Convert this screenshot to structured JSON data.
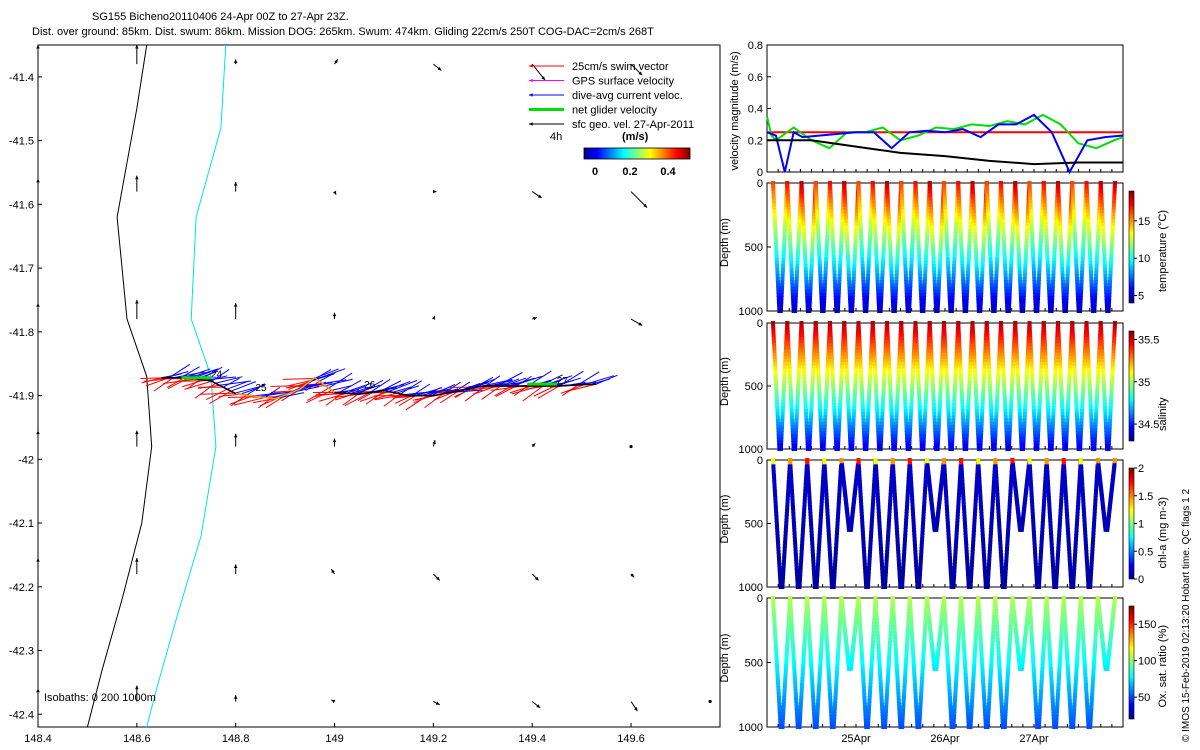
{
  "header": {
    "line1": "SG155 Bicheno20110406 24-Apr 00Z to 27-Apr 23Z.",
    "line2": "Dist. over ground: 85km. Dist. swum: 86km. Mission DOG: 265km. Swum: 474km. Gliding 22cm/s 250T COG-DAC=2cm/s 268T"
  },
  "footer_note": "© IMOS 15-Feb-2019 02:13:20 Hobart time. QC flags 1  2",
  "colors": {
    "swim": "#ff0000",
    "gps": "#ff00ff",
    "dac": "#0000ff",
    "net": "#00e000",
    "sfc": "#000000",
    "isobath0": "#000000",
    "isobath200": "#00e5e5",
    "colormap": [
      "#00008f",
      "#0000ff",
      "#0080ff",
      "#00ffff",
      "#80ff80",
      "#ffff00",
      "#ff8000",
      "#ff0000",
      "#800000"
    ]
  },
  "chart_data": [
    {
      "id": "map",
      "type": "scatter",
      "title": "",
      "xlim": [
        148.4,
        149.78
      ],
      "ylim": [
        -42.42,
        -41.35
      ],
      "xticks": [
        "148.4",
        "148.6",
        "148.8",
        "149",
        "149.2",
        "149.4",
        "149.6"
      ],
      "xtick_values": [
        148.4,
        148.6,
        148.8,
        149.0,
        149.2,
        149.4,
        149.6
      ],
      "yticks": [
        "-41.4",
        "-41.5",
        "-41.6",
        "-41.7",
        "-41.8",
        "-41.9",
        "-42",
        "-42.1",
        "-42.2",
        "-42.3",
        "-42.4"
      ],
      "ytick_values": [
        -41.4,
        -41.5,
        -41.6,
        -41.7,
        -41.8,
        -41.9,
        -42.0,
        -42.1,
        -42.2,
        -42.3,
        -42.4
      ],
      "legend": {
        "placement": "top-right",
        "items": [
          "25cm/s swim vector",
          "GPS surface velocity",
          "dive-avg current veloc.",
          "net glider velocity",
          "sfc geo. vel. 27-Apr-2011"
        ],
        "scale_label": "4h",
        "unit_label": "(m/s)",
        "colorbar_ticks": [
          "0",
          "0.2",
          "0.4"
        ]
      },
      "isobath_label": "Isobaths: 0   200  1000m",
      "day_labels": [
        "24",
        "25",
        "26",
        "27"
      ],
      "day_positions": [
        [
          148.75,
          -41.872
        ],
        [
          148.84,
          -41.893
        ],
        [
          149.06,
          -41.888
        ],
        [
          149.45,
          -41.882
        ]
      ],
      "isobath_0m": [
        [
          148.62,
          -41.35
        ],
        [
          148.6,
          -41.45
        ],
        [
          148.56,
          -41.62
        ],
        [
          148.58,
          -41.78
        ],
        [
          148.62,
          -41.87
        ],
        [
          148.63,
          -41.98
        ],
        [
          148.61,
          -42.1
        ],
        [
          148.57,
          -42.22
        ],
        [
          148.53,
          -42.33
        ],
        [
          148.5,
          -42.42
        ]
      ],
      "isobath_200m": [
        [
          148.78,
          -41.35
        ],
        [
          148.77,
          -41.48
        ],
        [
          148.72,
          -41.62
        ],
        [
          148.71,
          -41.78
        ],
        [
          148.75,
          -41.87
        ],
        [
          148.76,
          -41.98
        ],
        [
          148.73,
          -42.12
        ],
        [
          148.68,
          -42.25
        ],
        [
          148.64,
          -42.36
        ],
        [
          148.62,
          -42.42
        ]
      ],
      "track": [
        [
          148.65,
          -41.872
        ],
        [
          148.7,
          -41.872
        ],
        [
          148.75,
          -41.877
        ],
        [
          148.8,
          -41.897
        ],
        [
          148.88,
          -41.905
        ],
        [
          148.93,
          -41.89
        ],
        [
          148.96,
          -41.872
        ],
        [
          149.0,
          -41.895
        ],
        [
          149.05,
          -41.898
        ],
        [
          149.1,
          -41.892
        ],
        [
          149.15,
          -41.9
        ],
        [
          149.2,
          -41.9
        ],
        [
          149.25,
          -41.893
        ],
        [
          149.3,
          -41.885
        ],
        [
          149.35,
          -41.885
        ],
        [
          149.4,
          -41.885
        ],
        [
          149.45,
          -41.885
        ],
        [
          149.53,
          -41.882
        ]
      ],
      "geo_velocity_arrows": [
        {
          "lon": 148.4,
          "lat": -41.38,
          "u": 0,
          "v": 0.12
        },
        {
          "lon": 148.6,
          "lat": -41.38,
          "u": 0,
          "v": 0.12
        },
        {
          "lon": 148.8,
          "lat": -41.38,
          "u": 0,
          "v": 0.03
        },
        {
          "lon": 149.0,
          "lat": -41.38,
          "u": 0.02,
          "v": 0.03
        },
        {
          "lon": 149.2,
          "lat": -41.38,
          "u": 0.05,
          "v": -0.04
        },
        {
          "lon": 149.4,
          "lat": -41.38,
          "u": 0.08,
          "v": -0.1
        },
        {
          "lon": 149.6,
          "lat": -41.38,
          "u": 0.07,
          "v": -0.07
        },
        {
          "lon": 148.4,
          "lat": -41.58,
          "u": 0,
          "v": 0.08
        },
        {
          "lon": 148.6,
          "lat": -41.58,
          "u": 0,
          "v": 0.1
        },
        {
          "lon": 148.8,
          "lat": -41.58,
          "u": 0,
          "v": 0.06
        },
        {
          "lon": 149.0,
          "lat": -41.58,
          "u": 0.01,
          "v": -0.02
        },
        {
          "lon": 149.2,
          "lat": -41.58,
          "u": 0.02,
          "v": 0
        },
        {
          "lon": 149.4,
          "lat": -41.58,
          "u": 0.06,
          "v": -0.04
        },
        {
          "lon": 149.6,
          "lat": -41.58,
          "u": 0.1,
          "v": -0.1
        },
        {
          "lon": 148.4,
          "lat": -41.78,
          "u": 0,
          "v": 0.1
        },
        {
          "lon": 148.6,
          "lat": -41.78,
          "u": 0,
          "v": 0.12
        },
        {
          "lon": 148.8,
          "lat": -41.78,
          "u": 0,
          "v": 0.1
        },
        {
          "lon": 149.0,
          "lat": -41.78,
          "u": 0,
          "v": 0.04
        },
        {
          "lon": 149.2,
          "lat": -41.78,
          "u": 0.01,
          "v": 0.02
        },
        {
          "lon": 149.4,
          "lat": -41.78,
          "u": 0.03,
          "v": 0.01
        },
        {
          "lon": 149.6,
          "lat": -41.78,
          "u": 0.07,
          "v": -0.04
        },
        {
          "lon": 148.4,
          "lat": -41.98,
          "u": 0,
          "v": 0.1
        },
        {
          "lon": 148.6,
          "lat": -41.98,
          "u": 0,
          "v": 0.1
        },
        {
          "lon": 148.8,
          "lat": -41.98,
          "u": 0,
          "v": 0.08
        },
        {
          "lon": 149.0,
          "lat": -41.98,
          "u": 0,
          "v": 0.05
        },
        {
          "lon": 149.2,
          "lat": -41.98,
          "u": 0.01,
          "v": 0.04
        },
        {
          "lon": 149.4,
          "lat": -41.98,
          "u": 0.02,
          "v": 0.02
        },
        {
          "lon": 149.6,
          "lat": -41.98,
          "u": 0.01,
          "v": 0
        },
        {
          "lon": 148.4,
          "lat": -42.18,
          "u": 0,
          "v": 0.1
        },
        {
          "lon": 148.6,
          "lat": -42.18,
          "u": 0,
          "v": 0.1
        },
        {
          "lon": 148.8,
          "lat": -42.18,
          "u": 0,
          "v": 0.06
        },
        {
          "lon": 149.0,
          "lat": -42.18,
          "u": -0.02,
          "v": 0.03
        },
        {
          "lon": 149.2,
          "lat": -42.18,
          "u": 0.04,
          "v": -0.04
        },
        {
          "lon": 149.4,
          "lat": -42.18,
          "u": 0.04,
          "v": -0.04
        },
        {
          "lon": 149.6,
          "lat": -42.18,
          "u": 0.02,
          "v": -0.02
        },
        {
          "lon": 148.4,
          "lat": -42.38,
          "u": 0,
          "v": 0.08
        },
        {
          "lon": 148.6,
          "lat": -42.38,
          "u": 0,
          "v": 0.1
        },
        {
          "lon": 148.8,
          "lat": -42.38,
          "u": 0,
          "v": 0.04
        },
        {
          "lon": 149.0,
          "lat": -42.38,
          "u": -0.02,
          "v": 0.01
        },
        {
          "lon": 149.2,
          "lat": -42.38,
          "u": 0.04,
          "v": -0.02
        },
        {
          "lon": 149.4,
          "lat": -42.38,
          "u": 0.05,
          "v": -0.04
        },
        {
          "lon": 149.6,
          "lat": -42.38,
          "u": 0.04,
          "v": -0.06
        },
        {
          "lon": 149.76,
          "lat": -42.38,
          "u": 0.01,
          "v": 0
        }
      ]
    },
    {
      "id": "velocity",
      "type": "line",
      "title": "",
      "ylabel": "velocity magnitude (m/s)",
      "ylim": [
        0,
        0.8
      ],
      "xlim": [
        0,
        4.0
      ],
      "yticks": [
        "0",
        "0.2",
        "0.4",
        "0.6",
        "0.8"
      ],
      "ytick_values": [
        0,
        0.2,
        0.4,
        0.6,
        0.8
      ],
      "series": [
        {
          "color": "#ff0000",
          "x": [
            0,
            4.0
          ],
          "values": [
            0.25,
            0.25
          ]
        },
        {
          "color": "#00e000",
          "x": [
            0,
            0.05,
            0.1,
            0.3,
            0.5,
            0.7,
            0.9,
            1.1,
            1.3,
            1.5,
            1.7,
            1.9,
            2.1,
            2.3,
            2.5,
            2.7,
            2.9,
            3.1,
            3.3,
            3.5,
            3.7,
            3.9,
            4.0
          ],
          "values": [
            0.35,
            0.23,
            0.2,
            0.28,
            0.2,
            0.15,
            0.25,
            0.25,
            0.28,
            0.2,
            0.23,
            0.28,
            0.27,
            0.3,
            0.29,
            0.32,
            0.3,
            0.36,
            0.3,
            0.18,
            0.15,
            0.2,
            0.22
          ]
        },
        {
          "color": "#0000ff",
          "x": [
            0,
            0.1,
            0.2,
            0.3,
            0.4,
            0.6,
            0.8,
            1.0,
            1.2,
            1.4,
            1.6,
            1.8,
            2.0,
            2.2,
            2.4,
            2.6,
            2.8,
            3.0,
            3.2,
            3.4,
            3.6,
            3.8,
            4.0
          ],
          "values": [
            0.25,
            0.23,
            0.0,
            0.25,
            0.22,
            0.23,
            0.24,
            0.25,
            0.25,
            0.15,
            0.25,
            0.26,
            0.25,
            0.27,
            0.22,
            0.3,
            0.3,
            0.36,
            0.25,
            0.0,
            0.2,
            0.22,
            0.23
          ]
        },
        {
          "color": "#000000",
          "x": [
            0,
            0.5,
            1.0,
            1.5,
            2.0,
            2.5,
            3.0,
            3.5,
            4.0
          ],
          "values": [
            0.2,
            0.2,
            0.16,
            0.12,
            0.1,
            0.07,
            0.05,
            0.06,
            0.06
          ]
        }
      ]
    },
    {
      "id": "temperature",
      "type": "scatter",
      "ylabel": "Depth (m)",
      "cbar_label": "temperature (°C)",
      "ylim": [
        0,
        1000
      ],
      "yticks": [
        "0",
        "500",
        "1000"
      ],
      "ytick_values": [
        0,
        500,
        1000
      ],
      "cbar_ticks": [
        "5",
        "10",
        "15"
      ],
      "cbar_tick_values": [
        5,
        10,
        15
      ],
      "cbar_range": [
        4,
        19
      ],
      "n_profiles": 24
    },
    {
      "id": "salinity",
      "type": "scatter",
      "ylabel": "Depth (m)",
      "cbar_label": "salinity",
      "ylim": [
        0,
        1000
      ],
      "yticks": [
        "0",
        "500",
        "1000"
      ],
      "ytick_values": [
        0,
        500,
        1000
      ],
      "cbar_ticks": [
        "34.5",
        "35",
        "35.5"
      ],
      "cbar_tick_values": [
        34.5,
        35,
        35.5
      ],
      "cbar_range": [
        34.3,
        35.6
      ],
      "n_profiles": 24
    },
    {
      "id": "chla",
      "type": "scatter",
      "ylabel": "Depth (m)",
      "cbar_label": "chl-a (mg m-3)",
      "ylim": [
        0,
        1000
      ],
      "yticks": [
        "0",
        "500",
        "1000"
      ],
      "ytick_values": [
        0,
        500,
        1000
      ],
      "cbar_ticks": [
        "0",
        "0.5",
        "1",
        "1.5",
        "2"
      ],
      "cbar_tick_values": [
        0,
        0.5,
        1,
        1.5,
        2
      ],
      "cbar_range": [
        0,
        2
      ],
      "n_profiles": 20
    },
    {
      "id": "oxygen",
      "type": "scatter",
      "ylabel": "Depth (m)",
      "cbar_label": "Ox. sat. ratio (%)",
      "ylim": [
        0,
        1000
      ],
      "yticks": [
        "0",
        "500",
        "1000"
      ],
      "ytick_values": [
        0,
        500,
        1000
      ],
      "cbar_ticks": [
        "50",
        "100",
        "150"
      ],
      "cbar_tick_values": [
        50,
        100,
        150
      ],
      "cbar_range": [
        20,
        175
      ],
      "n_profiles": 20,
      "xticks": [
        "25Apr",
        "26Apr",
        "27Apr"
      ],
      "xtick_values": [
        1,
        2,
        3
      ],
      "xlim": [
        0,
        4.0
      ]
    }
  ]
}
